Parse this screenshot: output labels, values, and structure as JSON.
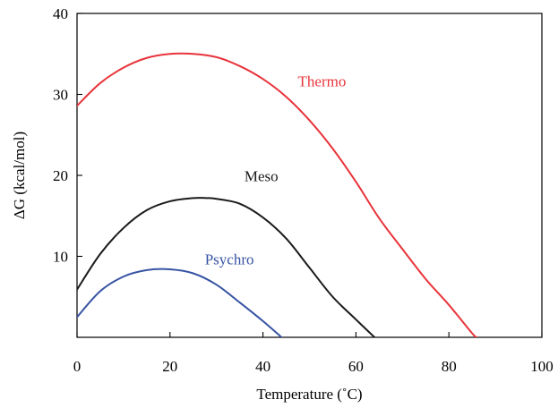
{
  "chart_data": {
    "type": "line",
    "title": "",
    "xlabel": "Temperature (˚C)",
    "ylabel": "ΔG (kcal/mol)",
    "xlim": [
      0,
      100
    ],
    "ylim": [
      0,
      40
    ],
    "xticks": [
      0,
      20,
      40,
      60,
      80,
      100
    ],
    "yticks": [
      10,
      20,
      30,
      40
    ],
    "grid": false,
    "legend": "none",
    "series": [
      {
        "name": "Thermo",
        "color": "#e8333a",
        "x": [
          0,
          5,
          10,
          15,
          20,
          25,
          30,
          35,
          40,
          45,
          50,
          55,
          60,
          65,
          70,
          75,
          80,
          85,
          86
        ],
        "y": [
          28.6,
          31.4,
          33.3,
          34.5,
          35.0,
          35.0,
          34.6,
          33.5,
          31.9,
          29.7,
          26.8,
          23.3,
          19.2,
          14.7,
          10.9,
          7.2,
          4.0,
          0.5,
          0
        ]
      },
      {
        "name": "Meso",
        "color": "#1a1a1a",
        "x": [
          0,
          5,
          10,
          15,
          20,
          25,
          28,
          30,
          35,
          40,
          45,
          50,
          55,
          60,
          64
        ],
        "y": [
          5.9,
          10.3,
          13.5,
          15.7,
          16.8,
          17.2,
          17.2,
          17.1,
          16.5,
          14.8,
          12.2,
          8.6,
          5.0,
          2.2,
          0
        ]
      },
      {
        "name": "Psychro",
        "color": "#3653a3",
        "x": [
          0,
          5,
          10,
          15,
          20,
          25,
          30,
          35,
          40,
          44
        ],
        "y": [
          2.5,
          5.7,
          7.5,
          8.3,
          8.4,
          7.9,
          6.5,
          4.3,
          2.0,
          0
        ]
      }
    ]
  }
}
